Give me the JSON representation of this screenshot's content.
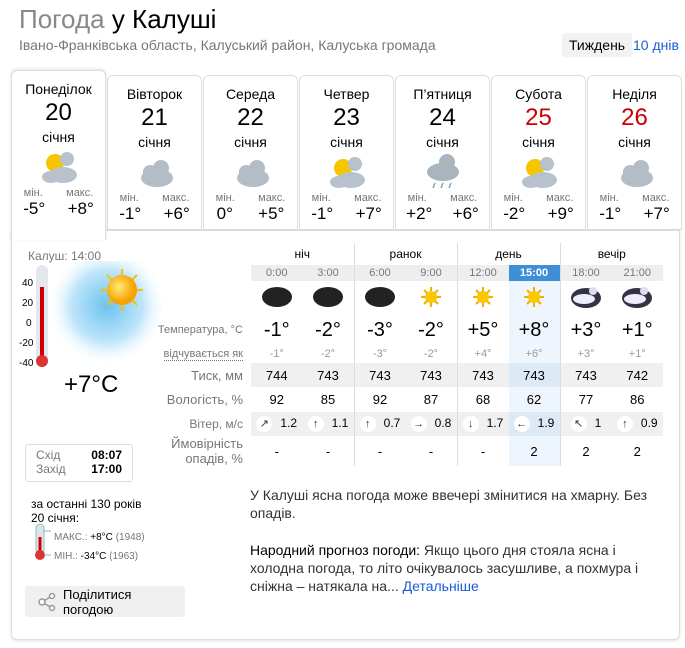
{
  "header": {
    "title_prefix": "Погода",
    "title_city": "у Калуші",
    "subtitle": "Івано-Франківська область, Калуський район, Калуська громада",
    "week_label": "Тиждень",
    "ten_days_label": "10 днів"
  },
  "days": [
    {
      "name": "Понеділок",
      "date": "20",
      "month": "січня",
      "icon": "sun-cloud-icon",
      "min_label": "мін.",
      "max_label": "макс.",
      "min": "-5°",
      "max": "+8°",
      "weekend": false
    },
    {
      "name": "Вівторок",
      "date": "21",
      "month": "січня",
      "icon": "cloud-icon",
      "min_label": "мін.",
      "max_label": "макс.",
      "min": "-1°",
      "max": "+6°",
      "weekend": false
    },
    {
      "name": "Середа",
      "date": "22",
      "month": "січня",
      "icon": "cloud-icon",
      "min_label": "мін.",
      "max_label": "макс.",
      "min": "0°",
      "max": "+5°",
      "weekend": false
    },
    {
      "name": "Четвер",
      "date": "23",
      "month": "січня",
      "icon": "sun-cloud-icon",
      "min_label": "мін.",
      "max_label": "макс.",
      "min": "-1°",
      "max": "+7°",
      "weekend": false
    },
    {
      "name": "П’ятниця",
      "date": "24",
      "month": "січня",
      "icon": "cloud-rain-icon",
      "min_label": "мін.",
      "max_label": "макс.",
      "min": "+2°",
      "max": "+6°",
      "weekend": false
    },
    {
      "name": "Субота",
      "date": "25",
      "month": "січня",
      "icon": "sun-cloud-icon",
      "min_label": "мін.",
      "max_label": "макс.",
      "min": "-2°",
      "max": "+9°",
      "weekend": true
    },
    {
      "name": "Неділя",
      "date": "26",
      "month": "січня",
      "icon": "cloud-icon",
      "min_label": "мін.",
      "max_label": "макс.",
      "min": "-1°",
      "max": "+7°",
      "weekend": true
    }
  ],
  "current": {
    "city_time": "Калуш: 14:00",
    "temp": "+7°C",
    "scale": [
      "40",
      "20",
      "0",
      "-20",
      "-40"
    ],
    "sunrise_label": "Схід",
    "sunrise": "08:07",
    "sunset_label": "Захід",
    "sunset": "17:00"
  },
  "history": {
    "title1": "за останні 130 років",
    "title2": "20 січня:",
    "max_label": "МАКС.:",
    "max": "+8°C",
    "max_year": "(1948)",
    "min_label": "МІН.:",
    "min": "-34°C",
    "min_year": "(1963)"
  },
  "share_label": "Поділитися погодою",
  "hourly": {
    "groups": [
      "ніч",
      "ранок",
      "день",
      "вечір"
    ],
    "labels": {
      "temp": "Температура, °C",
      "feels": "відчувається як",
      "pressure": "Тиск, мм",
      "humidity": "Вологість, %",
      "wind": "Вітер, м/с",
      "precip1": "Ймовірність",
      "precip2": "опадів, %"
    },
    "times": [
      "0:00",
      "3:00",
      "6:00",
      "9:00",
      "12:00",
      "15:00",
      "18:00",
      "21:00"
    ],
    "current_index": 5,
    "icons": [
      "moon-icon",
      "moon-icon",
      "moon-icon",
      "sun-icon",
      "sun-icon",
      "sun-icon",
      "cloudy-night-icon",
      "cloudy-night-icon"
    ],
    "temp": [
      "-1°",
      "-2°",
      "-3°",
      "-2°",
      "+5°",
      "+8°",
      "+3°",
      "+1°"
    ],
    "feels": [
      "-1°",
      "-2°",
      "-3°",
      "-2°",
      "+4°",
      "+6°",
      "+3°",
      "+1°"
    ],
    "pressure": [
      "744",
      "743",
      "743",
      "743",
      "743",
      "743",
      "743",
      "742"
    ],
    "humidity": [
      "92",
      "85",
      "92",
      "87",
      "68",
      "62",
      "77",
      "86"
    ],
    "wind_dir": [
      "↗",
      "↑",
      "↑",
      "→",
      "↓",
      "←",
      "↖",
      "↑"
    ],
    "wind": [
      "1.2",
      "1.1",
      "0.7",
      "0.8",
      "1.7",
      "1.9",
      "1",
      "0.9"
    ],
    "precip": [
      "-",
      "-",
      "-",
      "-",
      "-",
      "2",
      "2",
      "2"
    ]
  },
  "description": "У Калуші ясна погода може ввечері змінитися на хмарну. Без опадів.",
  "folk": {
    "heading": "Народний прогноз погоди:",
    "text": " Якщо цього дня стояла ясна і холодна погода, то літо очікувалось засушливе, а похмура і сніжна – натякала на... ",
    "link": "Детальніше"
  },
  "colors": {
    "weekend": "#cc0000",
    "link": "#1a5bd6",
    "current_hour": "#3d8fd6"
  }
}
